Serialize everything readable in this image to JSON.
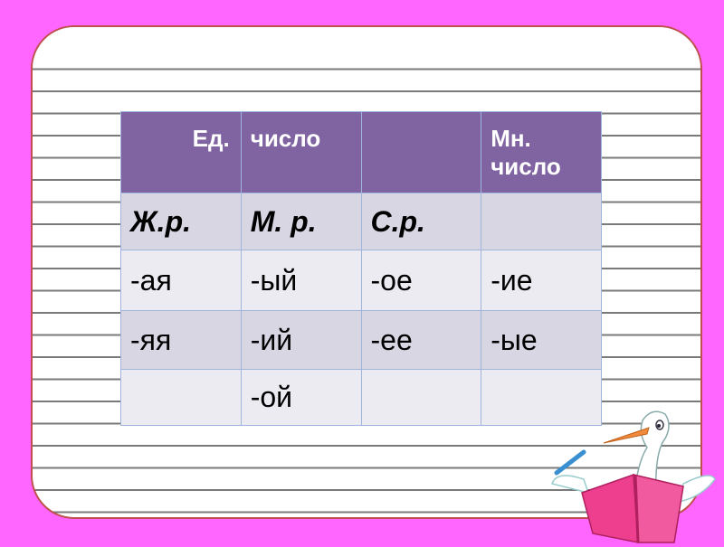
{
  "table": {
    "header": [
      "Ед.",
      "число",
      "",
      "Мн. число"
    ],
    "rows": [
      [
        "Ж.р.",
        "М. р.",
        "С.р.",
        ""
      ],
      [
        "-ая",
        "-ый",
        "-ое",
        "-ие"
      ],
      [
        "-яя",
        "-ий",
        "-ее",
        "-ые"
      ],
      [
        "",
        "-ой",
        "",
        ""
      ]
    ]
  },
  "colors": {
    "background": "#ff66ff",
    "header": "#8064a2",
    "row_dark": "#d9d6e3",
    "row_light": "#ecebf2",
    "panel_border": "#c0504d"
  }
}
